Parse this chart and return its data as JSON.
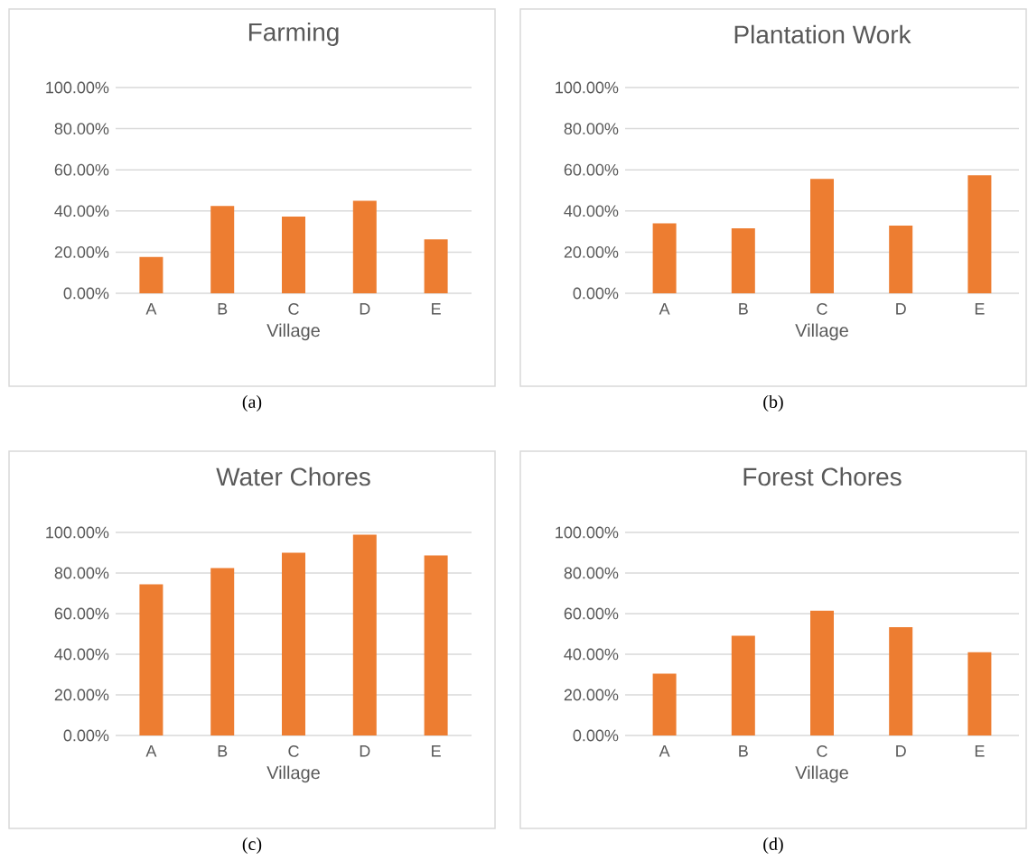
{
  "chart_data": [
    {
      "type": "bar",
      "title": "Farming",
      "xlabel": "Village",
      "categories": [
        "A",
        "B",
        "C",
        "D",
        "E"
      ],
      "values": [
        17.7,
        42.4,
        37.3,
        45.0,
        26.2
      ],
      "color": "#ed7d31",
      "ylim": [
        0,
        100
      ],
      "yticks": [
        {
          "value": 0,
          "label": "0.00%"
        },
        {
          "value": 20,
          "label": "20.00%"
        },
        {
          "value": 40,
          "label": "40.00%"
        },
        {
          "value": 60,
          "label": "60.00%"
        },
        {
          "value": 80,
          "label": "80.00%"
        },
        {
          "value": 100,
          "label": "100.00%"
        }
      ],
      "grid": "y",
      "annotations": [
        "(a)"
      ]
    },
    {
      "type": "bar",
      "title": "Plantation Work",
      "xlabel": "Village",
      "categories": [
        "A",
        "B",
        "C",
        "D",
        "E"
      ],
      "values": [
        34.0,
        31.6,
        55.6,
        32.9,
        57.3
      ],
      "color": "#ed7d31",
      "ylim": [
        0,
        100
      ],
      "yticks": [
        {
          "value": 0,
          "label": "0.00%"
        },
        {
          "value": 20,
          "label": "20.00%"
        },
        {
          "value": 40,
          "label": "40.00%"
        },
        {
          "value": 60,
          "label": "60.00%"
        },
        {
          "value": 80,
          "label": "80.00%"
        },
        {
          "value": 100,
          "label": "100.00%"
        }
      ],
      "grid": "y",
      "annotations": [
        "(b)"
      ]
    },
    {
      "type": "bar",
      "title": "Water Chores",
      "xlabel": "Village",
      "categories": [
        "A",
        "B",
        "C",
        "D",
        "E"
      ],
      "values": [
        74.4,
        82.5,
        90.0,
        98.9,
        88.7
      ],
      "color": "#ed7d31",
      "ylim": [
        0,
        100
      ],
      "yticks": [
        {
          "value": 0,
          "label": "0.00%"
        },
        {
          "value": 20,
          "label": "20.00%"
        },
        {
          "value": 40,
          "label": "40.00%"
        },
        {
          "value": 60,
          "label": "60.00%"
        },
        {
          "value": 80,
          "label": "80.00%"
        },
        {
          "value": 100,
          "label": "100.00%"
        }
      ],
      "grid": "y",
      "annotations": [
        "(c)"
      ]
    },
    {
      "type": "bar",
      "title": "Forest Chores",
      "xlabel": "Village",
      "categories": [
        "A",
        "B",
        "C",
        "D",
        "E"
      ],
      "values": [
        30.5,
        49.1,
        61.4,
        53.3,
        41.0
      ],
      "color": "#ed7d31",
      "ylim": [
        0,
        100
      ],
      "yticks": [
        {
          "value": 0,
          "label": "0.00%"
        },
        {
          "value": 20,
          "label": "20.00%"
        },
        {
          "value": 40,
          "label": "40.00%"
        },
        {
          "value": 60,
          "label": "60.00%"
        },
        {
          "value": 80,
          "label": "80.00%"
        },
        {
          "value": 100,
          "label": "100.00%"
        }
      ],
      "grid": "y",
      "annotations": [
        "(d)"
      ]
    }
  ]
}
